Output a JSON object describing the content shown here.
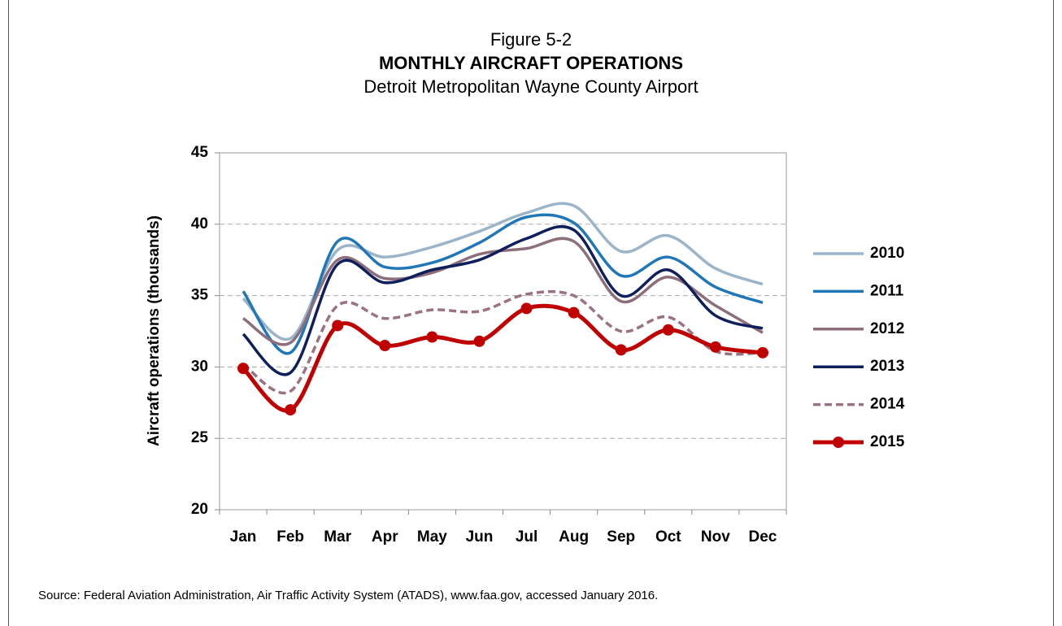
{
  "chart_data": {
    "type": "line",
    "title": "Figure 5-2",
    "subtitle": "MONTHLY AIRCRAFT OPERATIONS",
    "subtitle2": "Detroit Metropolitan Wayne County Airport",
    "y_label": "Aircraft operations (thousands)",
    "source": "Source:  Federal Aviation Administration, Air Traffic Activity System (ATADS), www.faa.gov, accessed January 2016.",
    "categories": [
      "Jan",
      "Feb",
      "Mar",
      "Apr",
      "May",
      "Jun",
      "Jul",
      "Aug",
      "Sep",
      "Oct",
      "Nov",
      "Dec"
    ],
    "ylim": [
      20,
      45
    ],
    "yticks": [
      20,
      25,
      30,
      35,
      40,
      45
    ],
    "grid": true,
    "smooth": true,
    "legend": "right",
    "series": [
      {
        "name": "2010",
        "color": "#9bb4c8",
        "values": [
          34.8,
          32.0,
          38.2,
          37.7,
          38.4,
          39.5,
          40.8,
          41.3,
          38.1,
          39.2,
          36.9,
          35.8
        ]
      },
      {
        "name": "2011",
        "color": "#1f77b8",
        "values": [
          35.3,
          31.0,
          38.8,
          37.0,
          37.3,
          38.7,
          40.5,
          40.1,
          36.4,
          37.7,
          35.6,
          34.5
        ]
      },
      {
        "name": "2012",
        "color": "#8c6e7c",
        "values": [
          33.4,
          31.7,
          37.5,
          36.2,
          36.6,
          37.9,
          38.3,
          38.8,
          34.6,
          36.3,
          34.3,
          32.4
        ]
      },
      {
        "name": "2013",
        "color": "#0f1f5c",
        "values": [
          32.3,
          29.6,
          37.2,
          35.9,
          36.8,
          37.5,
          39.0,
          39.6,
          35.0,
          36.8,
          33.6,
          32.7
        ]
      },
      {
        "name": "2014",
        "color": "#9a7280",
        "dashed": true,
        "values": [
          30.2,
          28.3,
          34.3,
          33.4,
          34.0,
          33.9,
          35.1,
          35.0,
          32.5,
          33.5,
          31.1,
          31.0
        ]
      },
      {
        "name": "2015",
        "color": "#c00000",
        "markers": true,
        "values": [
          29.9,
          27.0,
          32.9,
          31.5,
          32.1,
          31.8,
          34.1,
          33.8,
          31.2,
          32.6,
          31.4,
          31.0
        ]
      }
    ]
  }
}
